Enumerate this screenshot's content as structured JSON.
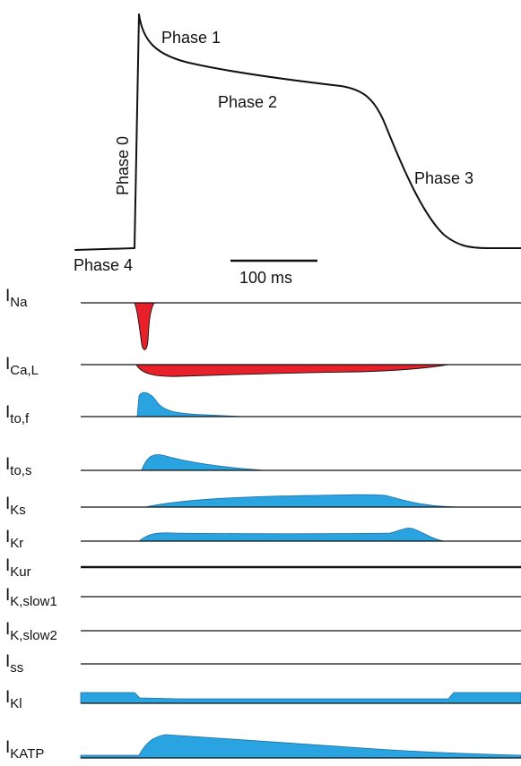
{
  "colors": {
    "inward_current": "#e8202a",
    "outward_current": "#2aa4e0",
    "ink": "#111111"
  },
  "action_potential": {
    "phase_labels": {
      "phase0": "Phase 0",
      "phase1": "Phase 1",
      "phase2": "Phase 2",
      "phase3": "Phase 3",
      "phase4": "Phase 4"
    },
    "scale_bar": "100 ms"
  },
  "currents": [
    {
      "id": "INa",
      "main": "I",
      "sub": "Na",
      "direction": "inward",
      "color": "red"
    },
    {
      "id": "ICaL",
      "main": "I",
      "sub": "Ca,L",
      "direction": "inward",
      "color": "red"
    },
    {
      "id": "Itof",
      "main": "I",
      "sub": "to,f",
      "direction": "outward",
      "color": "blue"
    },
    {
      "id": "Itos",
      "main": "I",
      "sub": "to,s",
      "direction": "outward",
      "color": "blue"
    },
    {
      "id": "IKs",
      "main": "I",
      "sub": "Ks",
      "direction": "outward",
      "color": "blue"
    },
    {
      "id": "IKr",
      "main": "I",
      "sub": "Kr",
      "direction": "outward",
      "color": "blue"
    },
    {
      "id": "IKur",
      "main": "I",
      "sub": "Kur",
      "direction": "none",
      "color": "none"
    },
    {
      "id": "IKslow1",
      "main": "I",
      "sub": "K,slow1",
      "direction": "none",
      "color": "none"
    },
    {
      "id": "IKslow2",
      "main": "I",
      "sub": "K,slow2",
      "direction": "none",
      "color": "none"
    },
    {
      "id": "Iss",
      "main": "I",
      "sub": "ss",
      "direction": "none",
      "color": "none"
    },
    {
      "id": "IK1",
      "main": "I",
      "sub": "Kl",
      "direction": "outward",
      "color": "blue"
    },
    {
      "id": "IKATP",
      "main": "I",
      "sub": "KATP",
      "direction": "outward",
      "color": "blue"
    }
  ]
}
